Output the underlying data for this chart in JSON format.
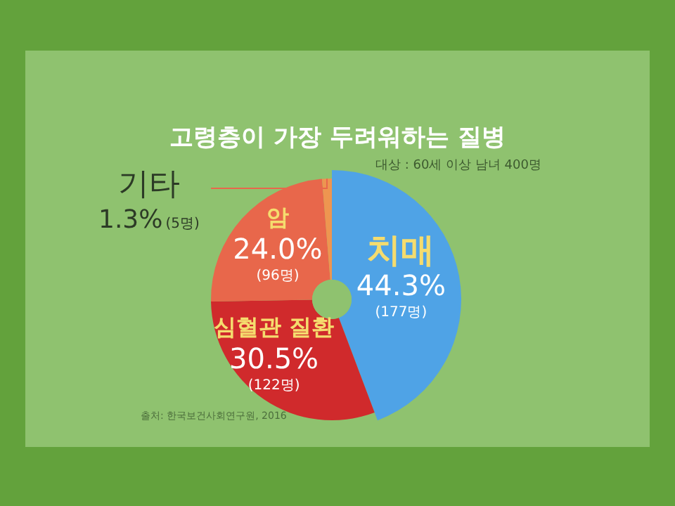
{
  "chart_data": {
    "type": "donut",
    "title": "고령층이 가장 두려워하는 질병",
    "subtitle": "대상 : 60세 이상 남녀 400명",
    "categories": [
      "치매",
      "심혈관 질환",
      "암",
      "기타"
    ],
    "values": [
      44.3,
      30.5,
      24.0,
      1.3
    ],
    "colors": [
      "#4fa3e6",
      "#d02a2c",
      "#e8674b",
      "#ee9550"
    ],
    "value_labels": [
      "44.3%\n(177명)",
      "30.5%\n(122명)",
      "24.0%\n(96명)",
      "1.3%(5명)"
    ],
    "annotations": [
      "출처: 한국보건사회연구원, 2016"
    ]
  }
}
